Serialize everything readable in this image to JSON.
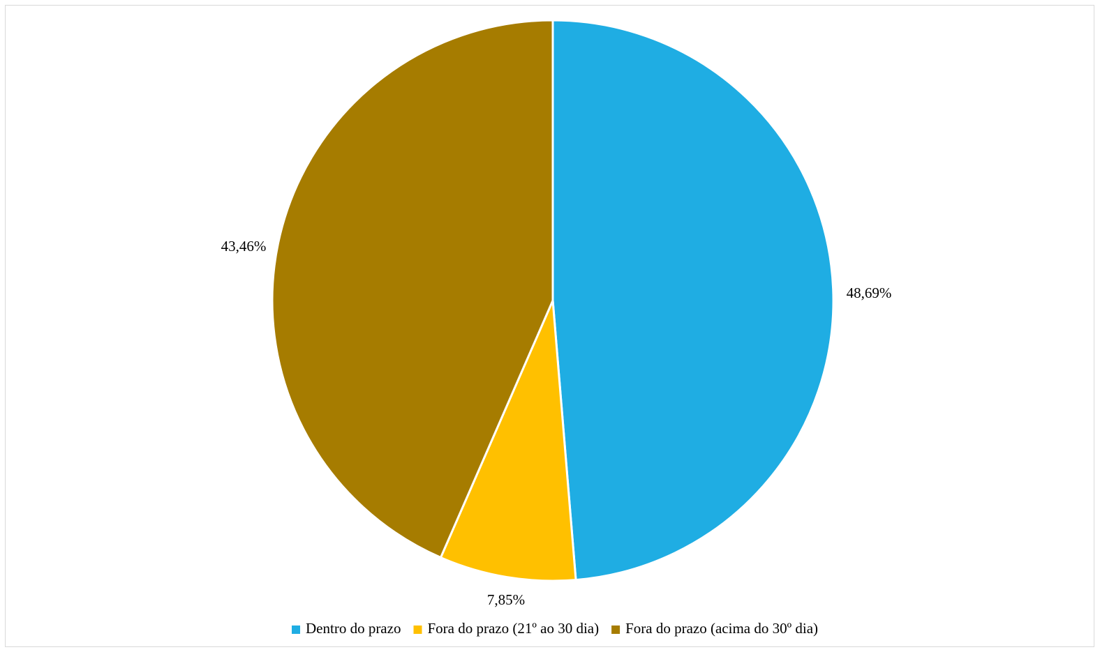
{
  "chart_data": {
    "type": "pie",
    "title": "",
    "categories": [
      "Dentro do prazo",
      "Fora do prazo (21º ao 30 dia)",
      "Fora do prazo (acima do 30º dia)"
    ],
    "values": [
      48.69,
      7.85,
      43.46
    ],
    "value_labels": [
      "48,69%",
      "7,85%",
      "43,46%"
    ],
    "colors": [
      "#1fade3",
      "#ffc000",
      "#a67c00"
    ],
    "start_angle_deg": 0,
    "direction": "clockwise",
    "legend_position": "bottom"
  }
}
